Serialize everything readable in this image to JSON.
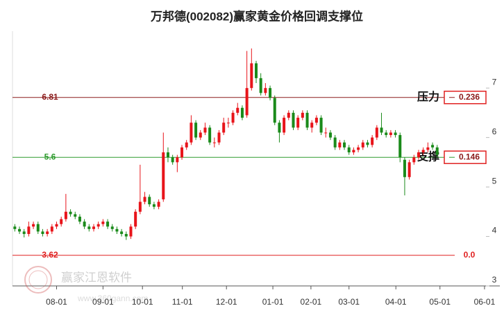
{
  "chart_data": {
    "type": "candlestick",
    "title": "万邦德(002082)赢家黄金价格回调支撑位",
    "watermark": "赢家江恩软件",
    "watermark_url": "www.360gann.com",
    "up_color": "#e8141a",
    "down_color": "#1a8a1a",
    "xlim": [
      -0.5,
      104.5
    ],
    "xticks": [
      {
        "value": 9,
        "label": "08-01"
      },
      {
        "value": 19,
        "label": "09-01"
      },
      {
        "value": 27.5,
        "label": "10-01"
      },
      {
        "value": 36.1,
        "label": "11-01"
      },
      {
        "value": 45.6,
        "label": "12-01"
      },
      {
        "value": 55.6,
        "label": "01-01"
      },
      {
        "value": 63.8,
        "label": "02-01"
      },
      {
        "value": 72,
        "label": "03-01"
      },
      {
        "value": 82.1,
        "label": "04-01"
      },
      {
        "value": 91.6,
        "label": "05-01"
      },
      {
        "value": 101.2,
        "label": "06-01"
      }
    ],
    "ylim": [
      3,
      8.15
    ],
    "yticks": [
      3,
      4,
      5,
      6,
      7
    ],
    "open": [
      4.2,
      4.15,
      4.1,
      4.05,
      4.2,
      4.25,
      4.1,
      4.05,
      4.1,
      4.2,
      4.25,
      4.35,
      4.5,
      4.45,
      4.4,
      4.3,
      4.2,
      4.15,
      4.2,
      4.25,
      4.3,
      4.2,
      4.15,
      4.1,
      4.05,
      4.0,
      4.2,
      4.5,
      4.7,
      4.8,
      4.65,
      4.6,
      4.75,
      5.7,
      5.6,
      5.5,
      5.6,
      5.8,
      5.9,
      6.3,
      6.0,
      6.1,
      6.2,
      5.9,
      5.9,
      6.1,
      6.3,
      6.3,
      6.5,
      6.6,
      6.45,
      7.0,
      7.5,
      7.2,
      6.9,
      7.0,
      6.8,
      6.3,
      6.1,
      6.4,
      6.5,
      6.2,
      6.4,
      6.5,
      6.2,
      6.3,
      6.4,
      6.1,
      6.1,
      6.0,
      5.8,
      5.9,
      5.8,
      5.7,
      5.75,
      5.8,
      5.9,
      5.85,
      6.0,
      6.2,
      6.1,
      6.05,
      6.1,
      6.05,
      5.55,
      5.2,
      5.5,
      5.6,
      5.7,
      5.75,
      5.85,
      5.8
    ],
    "high": [
      4.25,
      4.2,
      4.15,
      4.3,
      4.3,
      4.3,
      4.15,
      4.15,
      4.25,
      4.3,
      4.4,
      4.86,
      4.55,
      4.5,
      4.45,
      4.35,
      4.25,
      4.25,
      4.3,
      4.35,
      4.35,
      4.25,
      4.2,
      4.15,
      4.1,
      4.25,
      4.55,
      5.45,
      4.9,
      4.85,
      4.7,
      4.75,
      6.1,
      5.8,
      5.65,
      5.65,
      5.85,
      5.95,
      6.45,
      6.35,
      6.15,
      6.3,
      6.25,
      6.0,
      6.15,
      6.4,
      6.4,
      6.55,
      6.7,
      6.65,
      7.75,
      7.8,
      7.55,
      7.3,
      7.1,
      7.05,
      6.85,
      6.35,
      6.45,
      6.55,
      6.55,
      6.45,
      6.55,
      6.55,
      6.35,
      6.45,
      6.45,
      6.2,
      6.15,
      6.05,
      5.95,
      5.95,
      5.85,
      5.8,
      5.85,
      5.95,
      5.95,
      6.05,
      6.25,
      6.5,
      6.15,
      6.15,
      6.15,
      6.1,
      5.6,
      5.55,
      5.65,
      5.75,
      5.8,
      5.9,
      5.9,
      5.85
    ],
    "low": [
      4.1,
      4.05,
      3.98,
      4.0,
      4.15,
      4.05,
      4.0,
      4.0,
      4.05,
      4.15,
      4.2,
      4.3,
      4.4,
      4.35,
      4.25,
      4.15,
      4.1,
      4.1,
      4.15,
      4.2,
      4.15,
      4.1,
      4.05,
      4.0,
      3.93,
      3.95,
      4.15,
      4.45,
      4.65,
      4.6,
      4.55,
      4.55,
      4.7,
      5.5,
      5.45,
      5.3,
      5.55,
      5.75,
      5.85,
      5.95,
      5.95,
      6.05,
      5.85,
      5.8,
      5.85,
      6.05,
      6.2,
      6.25,
      6.45,
      6.35,
      6.4,
      6.95,
      7.1,
      6.85,
      6.85,
      6.75,
      6.25,
      5.9,
      6.05,
      6.35,
      6.15,
      6.15,
      6.35,
      6.15,
      6.1,
      6.25,
      6.05,
      6.0,
      5.95,
      5.75,
      5.75,
      5.75,
      5.65,
      5.65,
      5.7,
      5.75,
      5.8,
      5.8,
      5.95,
      6.05,
      6.0,
      6.0,
      6.0,
      5.5,
      4.83,
      5.15,
      5.45,
      5.55,
      5.65,
      5.7,
      5.75,
      5.6
    ],
    "close": [
      4.15,
      4.1,
      4.05,
      4.2,
      4.25,
      4.1,
      4.05,
      4.1,
      4.2,
      4.25,
      4.35,
      4.5,
      4.45,
      4.4,
      4.3,
      4.2,
      4.15,
      4.2,
      4.25,
      4.3,
      4.2,
      4.15,
      4.1,
      4.05,
      4.0,
      4.2,
      4.5,
      4.7,
      4.8,
      4.65,
      4.6,
      4.7,
      5.7,
      5.6,
      5.5,
      5.6,
      5.8,
      5.9,
      6.3,
      6.0,
      6.1,
      6.2,
      5.9,
      5.9,
      6.1,
      6.3,
      6.3,
      6.5,
      6.6,
      6.4,
      7.0,
      7.5,
      7.2,
      6.9,
      7.0,
      6.8,
      6.3,
      6.1,
      6.4,
      6.5,
      6.2,
      6.4,
      6.5,
      6.2,
      6.3,
      6.4,
      6.1,
      6.1,
      6.0,
      5.8,
      5.9,
      5.8,
      5.7,
      5.75,
      5.8,
      5.9,
      5.85,
      6.0,
      6.2,
      6.1,
      6.05,
      6.1,
      6.05,
      5.6,
      5.2,
      5.5,
      5.6,
      5.7,
      5.75,
      5.8,
      5.8,
      5.65
    ],
    "levels": [
      {
        "value": 6.81,
        "color": "#8b1a1a",
        "name": "压力",
        "ratio": 0.236
      },
      {
        "value": 5.6,
        "color": "#2e9b2e",
        "name": "支撑",
        "ratio": 0.146
      },
      {
        "value": 3.62,
        "color": "#e02020",
        "ratio": 0,
        "ratio_label": "0.0"
      }
    ]
  }
}
